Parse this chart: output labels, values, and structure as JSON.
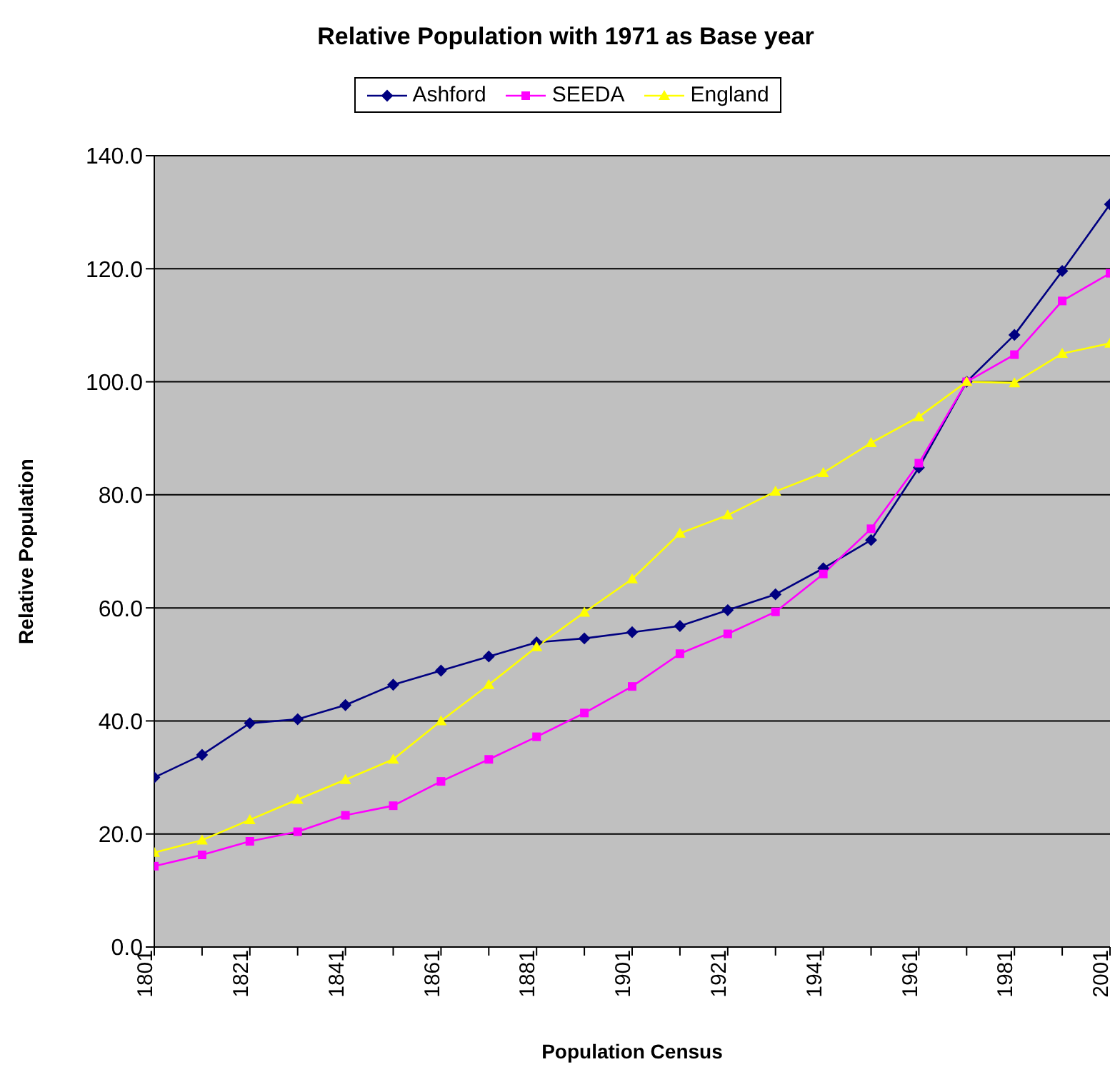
{
  "chart_data": {
    "type": "line",
    "title": "Relative Population with 1971 as Base year",
    "xlabel": "Population Census",
    "ylabel": "Relative Population",
    "categories": [
      "1801",
      null,
      "1821",
      null,
      "1841",
      null,
      "1861",
      null,
      "1881",
      null,
      "1901",
      null,
      "1921",
      null,
      "1941",
      null,
      "1961",
      null,
      "1981",
      null,
      "2001"
    ],
    "series": [
      {
        "name": "Ashford",
        "color": "#000080",
        "marker": "diamond",
        "values": [
          30.0,
          34.0,
          39.6,
          40.3,
          42.8,
          46.4,
          48.9,
          51.4,
          53.9,
          54.6,
          55.7,
          56.8,
          59.6,
          62.4,
          67.0,
          72.0,
          84.8,
          100.0,
          108.3,
          119.6,
          131.4
        ]
      },
      {
        "name": "SEEDA",
        "color": "#ff00ff",
        "marker": "square",
        "values": [
          14.3,
          16.3,
          18.7,
          20.4,
          23.3,
          25.0,
          29.3,
          33.2,
          37.2,
          41.4,
          46.1,
          51.9,
          55.4,
          59.3,
          66.0,
          74.0,
          85.6,
          100.0,
          104.8,
          114.3,
          119.2
        ]
      },
      {
        "name": "England",
        "color": "#ffff00",
        "marker": "triangle",
        "values": [
          16.7,
          18.9,
          22.5,
          26.1,
          29.6,
          33.2,
          40.0,
          46.4,
          53.1,
          59.2,
          65.1,
          73.2,
          76.4,
          80.6,
          83.9,
          89.2,
          93.8,
          100.0,
          99.8,
          105.0,
          106.8
        ]
      }
    ],
    "ylim": [
      0,
      140
    ],
    "yticks": [
      {
        "value": 0,
        "label": "0.0"
      },
      {
        "value": 20,
        "label": "20.0"
      },
      {
        "value": 40,
        "label": "40.0"
      },
      {
        "value": 60,
        "label": "60.0"
      },
      {
        "value": 80,
        "label": "80.0"
      },
      {
        "value": 100,
        "label": "100.0"
      },
      {
        "value": 120,
        "label": "120.0"
      },
      {
        "value": 140,
        "label": "140.0"
      }
    ],
    "grid": "y",
    "legend": "top",
    "line_style": "solid"
  }
}
